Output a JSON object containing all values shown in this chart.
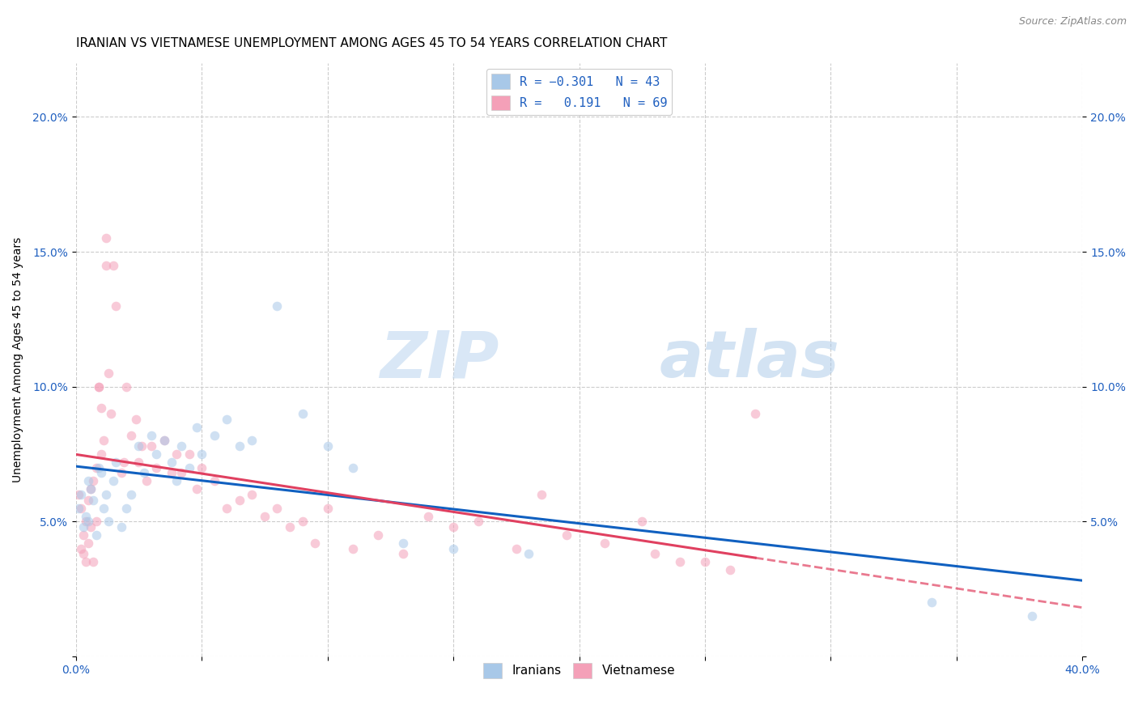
{
  "title": "IRANIAN VS VIETNAMESE UNEMPLOYMENT AMONG AGES 45 TO 54 YEARS CORRELATION CHART",
  "source": "Source: ZipAtlas.com",
  "ylabel": "Unemployment Among Ages 45 to 54 years",
  "watermark_zip": "ZIP",
  "watermark_atlas": "atlas",
  "xlim": [
    0.0,
    0.4
  ],
  "ylim": [
    0.0,
    0.22
  ],
  "xtick_positions": [
    0.0,
    0.05,
    0.1,
    0.15,
    0.2,
    0.25,
    0.3,
    0.35,
    0.4
  ],
  "xticklabels": [
    "0.0%",
    "",
    "",
    "",
    "",
    "",
    "",
    "",
    "40.0%"
  ],
  "ytick_positions": [
    0.0,
    0.05,
    0.1,
    0.15,
    0.2
  ],
  "yticklabels": [
    "",
    "5.0%",
    "10.0%",
    "15.0%",
    "20.0%"
  ],
  "iranian_color": "#a8c8e8",
  "vietnamese_color": "#f4a0b8",
  "iranian_line_color": "#1060c0",
  "vietnamese_line_color": "#e04060",
  "iranian_R": -0.301,
  "iranian_N": 43,
  "vietnamese_R": 0.191,
  "vietnamese_N": 69,
  "iranians_x": [
    0.001,
    0.002,
    0.003,
    0.004,
    0.005,
    0.005,
    0.006,
    0.007,
    0.008,
    0.009,
    0.01,
    0.011,
    0.012,
    0.013,
    0.015,
    0.016,
    0.018,
    0.02,
    0.022,
    0.025,
    0.027,
    0.03,
    0.032,
    0.035,
    0.038,
    0.04,
    0.042,
    0.045,
    0.048,
    0.05,
    0.055,
    0.06,
    0.065,
    0.07,
    0.08,
    0.09,
    0.1,
    0.11,
    0.13,
    0.15,
    0.18,
    0.34,
    0.38
  ],
  "iranians_y": [
    0.055,
    0.06,
    0.048,
    0.052,
    0.05,
    0.065,
    0.062,
    0.058,
    0.045,
    0.07,
    0.068,
    0.055,
    0.06,
    0.05,
    0.065,
    0.072,
    0.048,
    0.055,
    0.06,
    0.078,
    0.068,
    0.082,
    0.075,
    0.08,
    0.072,
    0.065,
    0.078,
    0.07,
    0.085,
    0.075,
    0.082,
    0.088,
    0.078,
    0.08,
    0.13,
    0.09,
    0.078,
    0.07,
    0.042,
    0.04,
    0.038,
    0.02,
    0.015
  ],
  "vietnamese_x": [
    0.001,
    0.002,
    0.002,
    0.003,
    0.003,
    0.004,
    0.004,
    0.005,
    0.005,
    0.006,
    0.006,
    0.007,
    0.007,
    0.008,
    0.008,
    0.009,
    0.009,
    0.01,
    0.01,
    0.011,
    0.012,
    0.012,
    0.013,
    0.014,
    0.015,
    0.016,
    0.018,
    0.019,
    0.02,
    0.022,
    0.024,
    0.025,
    0.026,
    0.028,
    0.03,
    0.032,
    0.035,
    0.038,
    0.04,
    0.042,
    0.045,
    0.048,
    0.05,
    0.055,
    0.06,
    0.065,
    0.07,
    0.075,
    0.08,
    0.085,
    0.09,
    0.095,
    0.1,
    0.11,
    0.12,
    0.13,
    0.14,
    0.15,
    0.16,
    0.175,
    0.185,
    0.195,
    0.21,
    0.225,
    0.23,
    0.24,
    0.25,
    0.26,
    0.27
  ],
  "vietnamese_y": [
    0.06,
    0.055,
    0.04,
    0.045,
    0.038,
    0.05,
    0.035,
    0.058,
    0.042,
    0.062,
    0.048,
    0.065,
    0.035,
    0.07,
    0.05,
    0.1,
    0.1,
    0.075,
    0.092,
    0.08,
    0.145,
    0.155,
    0.105,
    0.09,
    0.145,
    0.13,
    0.068,
    0.072,
    0.1,
    0.082,
    0.088,
    0.072,
    0.078,
    0.065,
    0.078,
    0.07,
    0.08,
    0.068,
    0.075,
    0.068,
    0.075,
    0.062,
    0.07,
    0.065,
    0.055,
    0.058,
    0.06,
    0.052,
    0.055,
    0.048,
    0.05,
    0.042,
    0.055,
    0.04,
    0.045,
    0.038,
    0.052,
    0.048,
    0.05,
    0.04,
    0.06,
    0.045,
    0.042,
    0.05,
    0.038,
    0.035,
    0.035,
    0.032,
    0.09
  ],
  "background_color": "#ffffff",
  "grid_color": "#cccccc",
  "scatter_size": 70,
  "scatter_alpha": 0.55,
  "title_fontsize": 11,
  "axis_label_fontsize": 10,
  "tick_fontsize": 10,
  "legend_fontsize": 11,
  "source_fontsize": 9,
  "vietnamese_line_x_end": 0.4
}
